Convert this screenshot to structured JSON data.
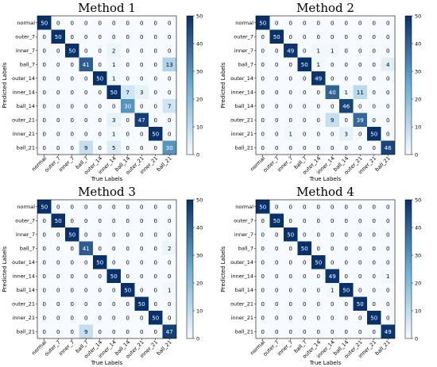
{
  "colors": {
    "cmap_low": "#f7fbff",
    "cmap_mid": "#6baed6",
    "cmap_high": "#08306b",
    "text_dark": "#000000",
    "text_light": "#ffffff"
  },
  "chart_data": [
    {
      "type": "heatmap",
      "title": "Method 1",
      "xlabel": "True Labels",
      "ylabel": "Predicted Labels",
      "x_categories": [
        "normal",
        "outer_7",
        "inner_7",
        "ball_7",
        "outer_14",
        "inner_14",
        "ball_14",
        "outer_21",
        "inner_21",
        "ball_21"
      ],
      "y_categories": [
        "normal",
        "outer_7",
        "inner_7",
        "ball_7",
        "outer_14",
        "inner_14",
        "ball_14",
        "outer_21",
        "inner_21",
        "ball_21"
      ],
      "matrix": [
        [
          50,
          0,
          0,
          0,
          0,
          0,
          0,
          0,
          0,
          0
        ],
        [
          0,
          50,
          0,
          0,
          0,
          0,
          0,
          0,
          0,
          0
        ],
        [
          0,
          0,
          50,
          0,
          0,
          2,
          0,
          0,
          0,
          0
        ],
        [
          0,
          0,
          0,
          41,
          0,
          1,
          0,
          0,
          0,
          13
        ],
        [
          0,
          0,
          0,
          0,
          50,
          1,
          0,
          0,
          0,
          0
        ],
        [
          0,
          0,
          0,
          0,
          0,
          50,
          7,
          3,
          0,
          0
        ],
        [
          0,
          0,
          0,
          0,
          0,
          0,
          30,
          0,
          0,
          7
        ],
        [
          0,
          0,
          0,
          0,
          0,
          3,
          0,
          47,
          0,
          0
        ],
        [
          0,
          0,
          0,
          0,
          0,
          1,
          0,
          0,
          50,
          0
        ],
        [
          0,
          0,
          0,
          9,
          0,
          5,
          0,
          0,
          0,
          30
        ]
      ],
      "colorbar_ticks": [
        0,
        10,
        20,
        30,
        40,
        50
      ],
      "vmin": 0,
      "vmax": 50
    },
    {
      "type": "heatmap",
      "title": "Method 2",
      "xlabel": "True Labels",
      "ylabel": "Predicted Labels",
      "x_categories": [
        "normal",
        "outer_7",
        "inner_7",
        "ball_7",
        "outer_14",
        "inner_14",
        "ball_14",
        "outer_21",
        "inner_21",
        "ball_21"
      ],
      "y_categories": [
        "normal",
        "outer_7",
        "inner_7",
        "ball_7",
        "outer_14",
        "inner_14",
        "ball_14",
        "outer_21",
        "inner_21",
        "ball_21"
      ],
      "matrix": [
        [
          50,
          0,
          0,
          0,
          0,
          0,
          0,
          0,
          0,
          0
        ],
        [
          0,
          50,
          0,
          0,
          0,
          0,
          0,
          0,
          0,
          0
        ],
        [
          0,
          0,
          49,
          0,
          1,
          1,
          0,
          0,
          0,
          0
        ],
        [
          0,
          0,
          0,
          50,
          1,
          0,
          0,
          0,
          0,
          4
        ],
        [
          0,
          0,
          0,
          0,
          49,
          0,
          0,
          0,
          0,
          0
        ],
        [
          0,
          0,
          0,
          0,
          0,
          40,
          1,
          11,
          0,
          0
        ],
        [
          0,
          0,
          0,
          0,
          0,
          0,
          46,
          0,
          0,
          0
        ],
        [
          0,
          0,
          0,
          0,
          0,
          9,
          0,
          39,
          0,
          0
        ],
        [
          0,
          0,
          1,
          0,
          0,
          0,
          3,
          0,
          50,
          0
        ],
        [
          0,
          0,
          0,
          0,
          0,
          0,
          0,
          0,
          0,
          46
        ]
      ],
      "colorbar_ticks": [
        0,
        10,
        20,
        30,
        40,
        50
      ],
      "vmin": 0,
      "vmax": 50
    },
    {
      "type": "heatmap",
      "title": "Method 3",
      "xlabel": "True Labels",
      "ylabel": "Predicted Labels",
      "x_categories": [
        "normal",
        "outer_7",
        "inner_7",
        "ball_7",
        "outer_14",
        "inner_14",
        "ball_14",
        "outer_21",
        "inner_21",
        "ball_21"
      ],
      "y_categories": [
        "normal",
        "outer_7",
        "inner_7",
        "ball_7",
        "outer_14",
        "inner_14",
        "ball_14",
        "outer_21",
        "inner_21",
        "ball_21"
      ],
      "matrix": [
        [
          50,
          0,
          0,
          0,
          0,
          0,
          0,
          0,
          0,
          0
        ],
        [
          0,
          50,
          0,
          0,
          0,
          0,
          0,
          0,
          0,
          0
        ],
        [
          0,
          0,
          50,
          0,
          0,
          0,
          0,
          0,
          0,
          0
        ],
        [
          0,
          0,
          0,
          41,
          0,
          0,
          0,
          0,
          0,
          2
        ],
        [
          0,
          0,
          0,
          0,
          50,
          0,
          0,
          0,
          0,
          0
        ],
        [
          0,
          0,
          0,
          0,
          0,
          50,
          0,
          0,
          0,
          0
        ],
        [
          0,
          0,
          0,
          0,
          0,
          0,
          50,
          0,
          0,
          1
        ],
        [
          0,
          0,
          0,
          0,
          0,
          0,
          0,
          50,
          0,
          0
        ],
        [
          0,
          0,
          0,
          0,
          0,
          0,
          0,
          0,
          50,
          0
        ],
        [
          0,
          0,
          0,
          9,
          0,
          0,
          0,
          0,
          0,
          47
        ]
      ],
      "colorbar_ticks": [
        0,
        10,
        20,
        30,
        40,
        50
      ],
      "vmin": 0,
      "vmax": 50
    },
    {
      "type": "heatmap",
      "title": "Method 4",
      "xlabel": "True Labels",
      "ylabel": "Predicted Labels",
      "x_categories": [
        "normal",
        "outer_7",
        "inner_7",
        "ball_7",
        "outer_14",
        "inner_14",
        "ball_14",
        "outer_21",
        "inner_21",
        "ball_21"
      ],
      "y_categories": [
        "normal",
        "outer_7",
        "inner_7",
        "ball_7",
        "outer_14",
        "inner_14",
        "ball_14",
        "outer_21",
        "inner_21",
        "ball_21"
      ],
      "matrix": [
        [
          50,
          0,
          0,
          0,
          0,
          0,
          0,
          0,
          0,
          0
        ],
        [
          0,
          50,
          0,
          0,
          0,
          0,
          0,
          0,
          0,
          0
        ],
        [
          0,
          0,
          50,
          0,
          0,
          0,
          0,
          0,
          0,
          0
        ],
        [
          0,
          0,
          0,
          50,
          0,
          0,
          0,
          0,
          0,
          0
        ],
        [
          0,
          0,
          0,
          0,
          50,
          0,
          0,
          0,
          0,
          0
        ],
        [
          0,
          0,
          0,
          0,
          0,
          49,
          0,
          0,
          0,
          1
        ],
        [
          0,
          0,
          0,
          0,
          0,
          1,
          50,
          0,
          0,
          0
        ],
        [
          0,
          0,
          0,
          0,
          0,
          0,
          0,
          50,
          0,
          0
        ],
        [
          0,
          0,
          0,
          0,
          0,
          0,
          0,
          0,
          50,
          0
        ],
        [
          0,
          0,
          0,
          0,
          0,
          0,
          0,
          0,
          0,
          49
        ]
      ],
      "colorbar_ticks": [
        0,
        10,
        20,
        30,
        40,
        50
      ],
      "vmin": 0,
      "vmax": 50
    }
  ]
}
